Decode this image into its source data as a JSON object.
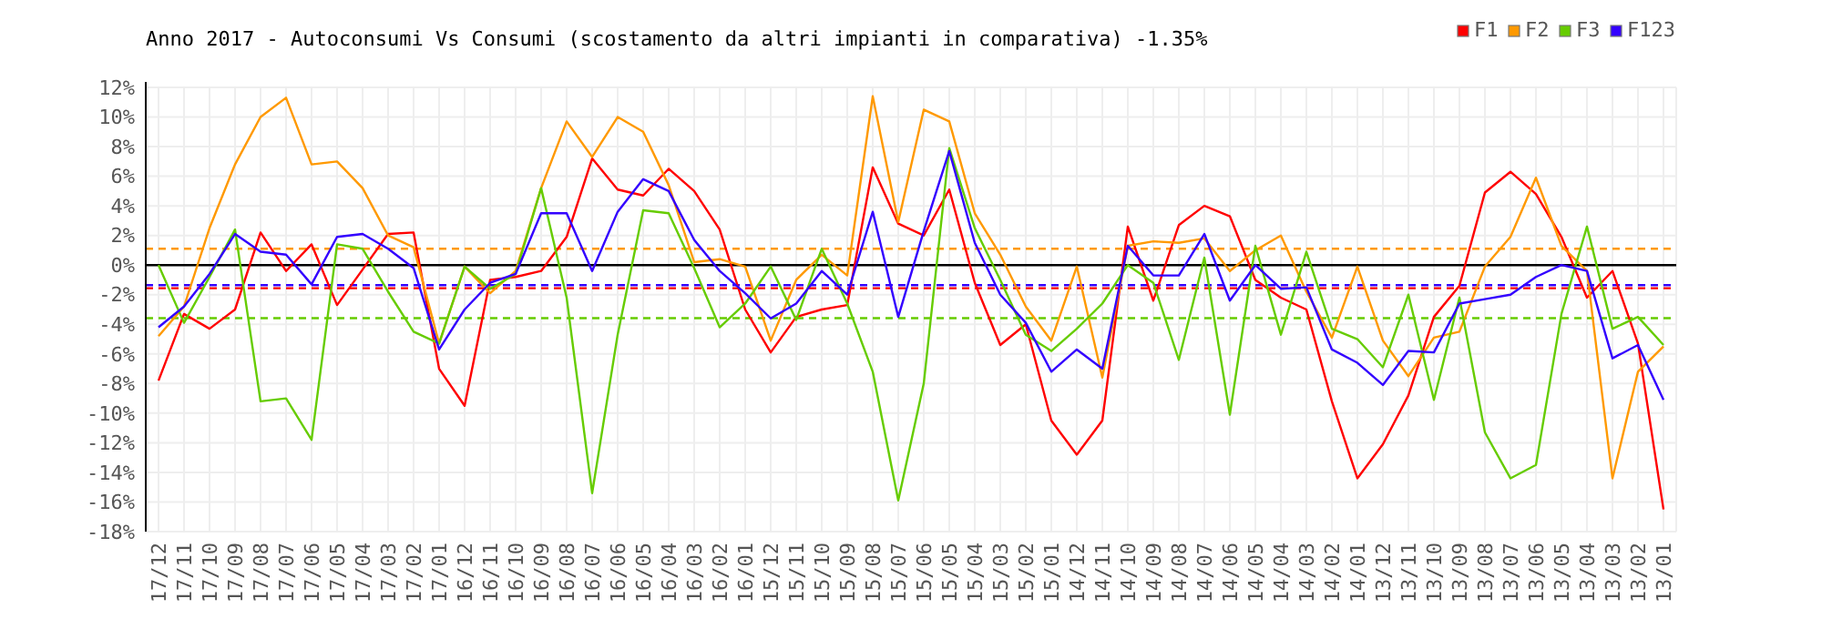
{
  "chart_data": {
    "type": "line",
    "title": "Anno 2017 - Autoconsumi Vs Consumi (scostamento da altri impianti in comparativa) -1.35%",
    "categories": [
      "17/12",
      "17/11",
      "17/10",
      "17/09",
      "17/08",
      "17/07",
      "17/06",
      "17/05",
      "17/04",
      "17/03",
      "17/02",
      "17/01",
      "16/12",
      "16/11",
      "16/10",
      "16/09",
      "16/08",
      "16/07",
      "16/06",
      "16/05",
      "16/04",
      "16/03",
      "16/02",
      "16/01",
      "15/12",
      "15/11",
      "15/10",
      "15/09",
      "15/08",
      "15/07",
      "15/06",
      "15/05",
      "15/04",
      "15/03",
      "15/02",
      "15/01",
      "14/12",
      "14/11",
      "14/10",
      "14/09",
      "14/08",
      "14/07",
      "14/06",
      "14/05",
      "14/04",
      "14/03",
      "14/02",
      "14/01",
      "13/12",
      "13/11",
      "13/10",
      "13/09",
      "13/08",
      "13/07",
      "13/06",
      "13/05",
      "13/04",
      "13/03",
      "13/02",
      "13/01"
    ],
    "series": [
      {
        "name": "F1",
        "color": "#ff0000",
        "values": [
          -7.8,
          -3.3,
          -4.3,
          -3.0,
          2.2,
          -0.4,
          1.4,
          -2.7,
          -0.3,
          2.1,
          2.2,
          -7.0,
          -9.5,
          -1.0,
          -0.8,
          -0.4,
          1.9,
          7.2,
          5.1,
          4.7,
          6.5,
          5.0,
          2.4,
          -3.0,
          -5.9,
          -3.5,
          -3.0,
          -2.7,
          6.6,
          2.8,
          2.0,
          5.1,
          -1.2,
          -5.4,
          -4.0,
          -10.5,
          -12.8,
          -10.5,
          2.6,
          -2.4,
          2.7,
          4.0,
          3.3,
          -1.0,
          -2.2,
          -3.0,
          -9.2,
          -14.4,
          -12.1,
          -8.8,
          -3.5,
          -1.4,
          4.9,
          6.3,
          4.8,
          1.9,
          -2.2,
          -0.4,
          -5.3,
          -16.5
        ]
      },
      {
        "name": "F2",
        "color": "#ff9900",
        "values": [
          -4.8,
          -2.8,
          2.5,
          6.8,
          10.0,
          11.3,
          6.8,
          7.0,
          5.2,
          2.0,
          1.2,
          -5.3,
          -0.1,
          -1.9,
          -0.4,
          5.2,
          9.7,
          7.3,
          10.0,
          9.0,
          5.4,
          0.2,
          0.4,
          -0.1,
          -5.1,
          -1.0,
          0.7,
          -0.7,
          11.4,
          2.9,
          10.5,
          9.7,
          3.5,
          0.7,
          -2.8,
          -5.1,
          -0.1,
          -7.6,
          1.3,
          1.6,
          1.5,
          1.8,
          -0.4,
          1.0,
          2.0,
          -1.8,
          -4.9,
          -0.1,
          -5.1,
          -7.5,
          -4.9,
          -4.5,
          -0.1,
          1.9,
          5.9,
          1.3,
          -0.4,
          -14.4,
          -7.2,
          -5.5
        ]
      },
      {
        "name": "F3",
        "color": "#66cc00",
        "values": [
          0,
          -3.9,
          -0.8,
          2.4,
          -9.2,
          -9.0,
          -11.8,
          1.4,
          1.1,
          -1.8,
          -4.5,
          -5.3,
          -0.1,
          -1.6,
          -0.6,
          5.2,
          -2.2,
          -15.4,
          -4.7,
          3.7,
          3.5,
          -0.2,
          -4.2,
          -2.6,
          -0.1,
          -3.7,
          1.1,
          -2.6,
          -7.2,
          -15.9,
          -8.0,
          7.9,
          2.5,
          -1.0,
          -4.7,
          -5.8,
          -4.3,
          -2.6,
          0,
          -1.2,
          -6.4,
          0.5,
          -10.1,
          1.3,
          -4.7,
          0.9,
          -4.3,
          -5.0,
          -6.9,
          -2.0,
          -9.1,
          -2.2,
          -11.3,
          -14.4,
          -13.5,
          -3.3,
          2.6,
          -4.3,
          -3.5,
          -5.4
        ]
      },
      {
        "name": "F123",
        "color": "#3300ff",
        "values": [
          -4.2,
          -2.8,
          -0.6,
          2.1,
          0.9,
          0.7,
          -1.3,
          1.9,
          2.1,
          1.1,
          -0.2,
          -5.7,
          -3.0,
          -1.2,
          -0.6,
          3.5,
          3.5,
          -0.4,
          3.6,
          5.8,
          5.0,
          1.7,
          -0.4,
          -1.9,
          -3.6,
          -2.6,
          -0.4,
          -2.0,
          3.6,
          -3.5,
          2.3,
          7.7,
          1.5,
          -2.0,
          -3.9,
          -7.2,
          -5.7,
          -7.0,
          1.3,
          -0.7,
          -0.7,
          2.1,
          -2.4,
          0,
          -1.6,
          -1.5,
          -5.7,
          -6.6,
          -8.1,
          -5.8,
          -5.9,
          -2.6,
          -2.3,
          -2.0,
          -0.8,
          0,
          -0.4,
          -6.3,
          -5.4,
          -9.1
        ]
      }
    ],
    "ylim": [
      -18,
      12
    ],
    "yticks": [
      {
        "value": -18,
        "label": "-18%"
      },
      {
        "value": -16,
        "label": "-16%"
      },
      {
        "value": -14,
        "label": "-14%"
      },
      {
        "value": -12,
        "label": "-12%"
      },
      {
        "value": -10,
        "label": "-10%"
      },
      {
        "value": -8,
        "label": "-8%"
      },
      {
        "value": -6,
        "label": "-6%"
      },
      {
        "value": -4,
        "label": "-4%"
      },
      {
        "value": -2,
        "label": "-2%"
      },
      {
        "value": 0,
        "label": "0%"
      },
      {
        "value": 2,
        "label": "2%"
      },
      {
        "value": 4,
        "label": "4%"
      },
      {
        "value": 6,
        "label": "6%"
      },
      {
        "value": 8,
        "label": "8%"
      },
      {
        "value": 10,
        "label": "10%"
      },
      {
        "value": 12,
        "label": "12%"
      }
    ],
    "ref_lines": [
      {
        "axis": "y",
        "value": 0,
        "color": "#000000",
        "line_style": "solid"
      },
      {
        "axis": "y",
        "value": 1.1,
        "color": "#ff9900",
        "line_style": "dashed"
      },
      {
        "axis": "y",
        "value": -1.36,
        "color": "#3300ff",
        "line_style": "dashed"
      },
      {
        "axis": "y",
        "value": -1.56,
        "color": "#ff0000",
        "line_style": "dashed"
      },
      {
        "axis": "y",
        "value": -3.58,
        "color": "#66cc00",
        "line_style": "dashed"
      }
    ],
    "grid": true,
    "legend": "top right",
    "marker": "none",
    "line_style": "solid"
  }
}
